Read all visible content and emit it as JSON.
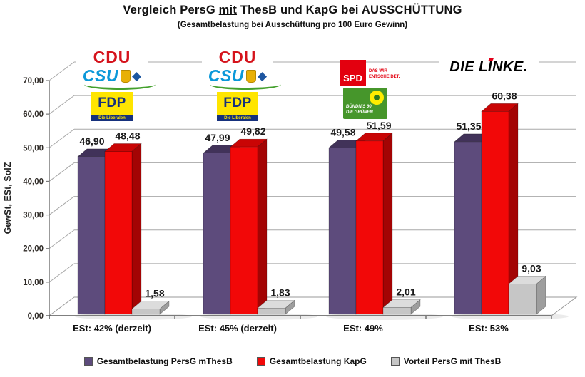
{
  "header": {
    "title_pre": "Vergleich PersG ",
    "title_mit": "mit",
    "title_post": " ThesB und KapG bei AUSSCHÜTTUNG",
    "subtitle": "(Gesamtbelastung bei Ausschüttung pro 100 Euro Gewinn)"
  },
  "chart_data": {
    "type": "bar",
    "style": "3d-column",
    "categories": [
      "ESt: 42% (derzeit)",
      "ESt: 45% (derzeit)",
      "ESt: 49%",
      "ESt: 53%"
    ],
    "series": [
      {
        "name": "Gesamtbelastung PersG mThesB",
        "color": "#5d4b7c",
        "color_top": "#413259",
        "color_side": "#4e3e68",
        "values": [
          46.9,
          47.99,
          49.58,
          51.35
        ],
        "labels": [
          "46,90",
          "47,99",
          "49,58",
          "51,35"
        ]
      },
      {
        "name": "Gesamtbelastung KapG",
        "color": "#f20808",
        "color_top": "#c90505",
        "color_side": "#a30404",
        "values": [
          48.48,
          49.82,
          51.59,
          60.38
        ],
        "labels": [
          "48,48",
          "49,82",
          "51,59",
          "60,38"
        ]
      },
      {
        "name": "Vorteil PersG mit ThesB",
        "color": "#c6c6c6",
        "color_top": "#dcdcdc",
        "color_side": "#9e9e9e",
        "values": [
          1.58,
          1.83,
          2.01,
          9.03
        ],
        "labels": [
          "1,58",
          "1,83",
          "2,01",
          "9,03"
        ]
      }
    ],
    "ylabel": "GewSt, ESt, SolZ",
    "xlabel": "",
    "ylim": [
      0,
      70
    ],
    "y_ticks": [
      "0,00",
      "10,00",
      "20,00",
      "30,00",
      "40,00",
      "50,00",
      "60,00",
      "70,00"
    ],
    "grid": true,
    "legend_position": "bottom"
  },
  "logos": {
    "cdu": "CDU",
    "csu": "CSU",
    "csu_diamond": "◆",
    "fdp": "FDP",
    "fdp_sub": "Die Liberalen",
    "spd": "SPD",
    "spd_claim_1": "DAS WIR",
    "spd_claim_2": "ENTSCHEIDET.",
    "gruene_1": "BÜNDNIS 90",
    "gruene_2": "DIE GRÜNEN",
    "linke_1": "DIE L",
    "linke_i": "I",
    "linke_2": "NKE."
  },
  "colors": {
    "cdu_red": "#d5131c",
    "csu_blue": "#0b98d9",
    "csu_diamond_blue": "#1d56a0",
    "csu_swoosh_green": "#43a02c",
    "fdp_yellow": "#ffe500",
    "fdp_blue": "#16317d",
    "spd_red": "#e3000f",
    "gruene_green": "#46962b",
    "gruene_yellow": "#ffec00",
    "linke_black": "#000000",
    "linke_red": "#e2001a",
    "grid_gray": "#a8a8a8",
    "axis_gray": "#555555",
    "text_dark": "#1a1a1a"
  }
}
